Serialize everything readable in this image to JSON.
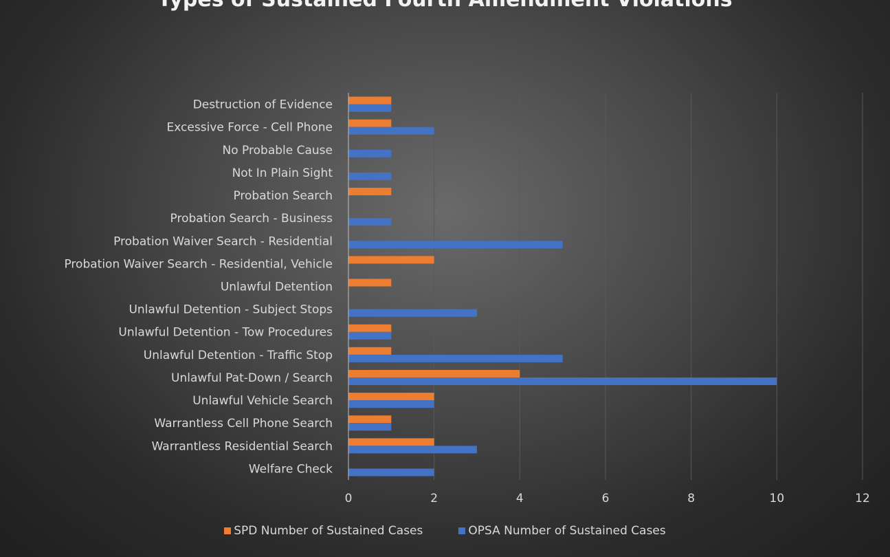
{
  "chart_data": {
    "type": "bar",
    "orientation": "horizontal",
    "title": "Types of Sustained Fourth Amendment Violations",
    "categories": [
      "Destruction of Evidence",
      "Excessive Force - Cell Phone",
      "No Probable Cause ",
      "Not In Plain Sight",
      "Probation Search",
      "Probation Search - Business",
      "Probation Waiver Search - Residential",
      "Probation Waiver Search - Residential, Vehicle",
      "Unlawful Detention",
      "Unlawful Detention - Subject Stops",
      "Unlawful Detention - Tow Procedures",
      "Unlawful Detention - Traffic Stop",
      "Unlawful Pat-Down / Search",
      "Unlawful Vehicle Search",
      "Warrantless Cell Phone Search ",
      "Warrantless Residential Search",
      "Welfare Check "
    ],
    "series": [
      {
        "name": "SPD Number of Sustained Cases",
        "color": "#ed7d31",
        "values": [
          1,
          1,
          null,
          null,
          1,
          null,
          null,
          2,
          1,
          null,
          1,
          1,
          4,
          2,
          1,
          2,
          null
        ]
      },
      {
        "name": "OPSA Number of Sustained Cases",
        "color": "#4472c4",
        "values": [
          1,
          2,
          1,
          1,
          null,
          1,
          5,
          null,
          null,
          3,
          1,
          5,
          10,
          2,
          1,
          3,
          2
        ]
      }
    ],
    "xlim": [
      0,
      12
    ],
    "xticks": [
      0,
      2,
      4,
      6,
      8,
      10,
      12
    ],
    "grid": true,
    "legend_position": "bottom",
    "colors": {
      "grid": "#595959",
      "axis": "#bfbfbf",
      "label": "#d9d9d9",
      "tick": "#d9d9d9"
    }
  }
}
